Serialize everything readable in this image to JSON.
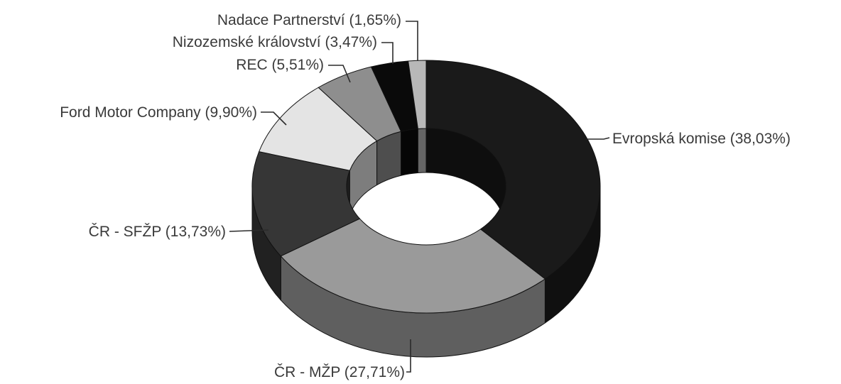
{
  "chart_data": {
    "type": "pie",
    "variant": "3d-donut",
    "title": "",
    "legend": "none",
    "slices": [
      {
        "label": "Evropská komise (38,03%)",
        "value": 38.03,
        "color": "#1a1a1a"
      },
      {
        "label": "ČR - MŽP (27,71%)",
        "value": 27.71,
        "color": "#9a9a9a"
      },
      {
        "label": "ČR - SFŽP (13,73%)",
        "value": 13.73,
        "color": "#363636"
      },
      {
        "label": "Ford Motor Company (9,90%)",
        "value": 9.9,
        "color": "#e4e4e4"
      },
      {
        "label": "REC  (5,51%)",
        "value": 5.51,
        "color": "#8e8e8e"
      },
      {
        "label": "Nizozemské království (3,47%)",
        "value": 3.47,
        "color": "#0a0a0a"
      },
      {
        "label": "Nadace Partnerství (1,65%)",
        "value": 1.65,
        "color": "#b8b8b8"
      }
    ]
  }
}
